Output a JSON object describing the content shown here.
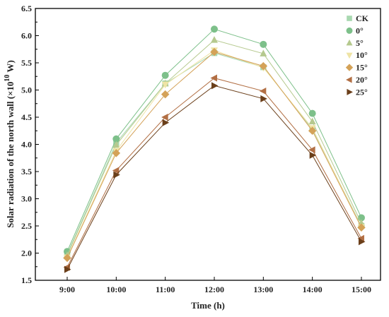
{
  "chart_data": {
    "type": "line",
    "xlabel": "Time (h)",
    "ylabel_prefix": "Solar radiation of the north wall (×10",
    "ylabel_exp": "10",
    "ylabel_suffix": " W)",
    "categories": [
      "9:00",
      "10:00",
      "11:00",
      "12:00",
      "13:00",
      "14:00",
      "15:00"
    ],
    "ylim": [
      1.5,
      6.5
    ],
    "yticks": [
      "1.5",
      "2.0",
      "2.5",
      "3.0",
      "3.5",
      "4.0",
      "4.5",
      "5.0",
      "5.5",
      "6.0",
      "6.5"
    ],
    "grid": false,
    "legend_position": "top-right",
    "series": [
      {
        "name": "CK",
        "marker": "square",
        "color": "#a8d8b0",
        "values": [
          1.98,
          4.03,
          5.12,
          5.68,
          5.42,
          4.28,
          2.5
        ]
      },
      {
        "name": "0°",
        "marker": "circle",
        "color": "#7dc08a",
        "values": [
          2.03,
          4.1,
          5.27,
          6.12,
          5.84,
          4.57,
          2.65
        ]
      },
      {
        "name": "5°",
        "marker": "triangle-up",
        "color": "#b5c98e",
        "values": [
          1.96,
          3.99,
          5.12,
          5.92,
          5.67,
          4.42,
          2.55
        ]
      },
      {
        "name": "10°",
        "marker": "triangle-down",
        "color": "#efe4a5",
        "values": [
          1.92,
          3.88,
          5.1,
          5.73,
          5.41,
          4.3,
          2.48
        ]
      },
      {
        "name": "15°",
        "marker": "diamond",
        "color": "#d4a258",
        "values": [
          1.91,
          3.84,
          4.92,
          5.7,
          5.44,
          4.25,
          2.47
        ]
      },
      {
        "name": "20°",
        "marker": "triangle-left",
        "color": "#b26f44",
        "values": [
          1.74,
          3.52,
          4.5,
          5.22,
          4.98,
          3.9,
          2.27
        ]
      },
      {
        "name": "25°",
        "marker": "triangle-right",
        "color": "#6b3f1a",
        "values": [
          1.7,
          3.44,
          4.4,
          5.08,
          4.84,
          3.8,
          2.21
        ]
      }
    ]
  }
}
